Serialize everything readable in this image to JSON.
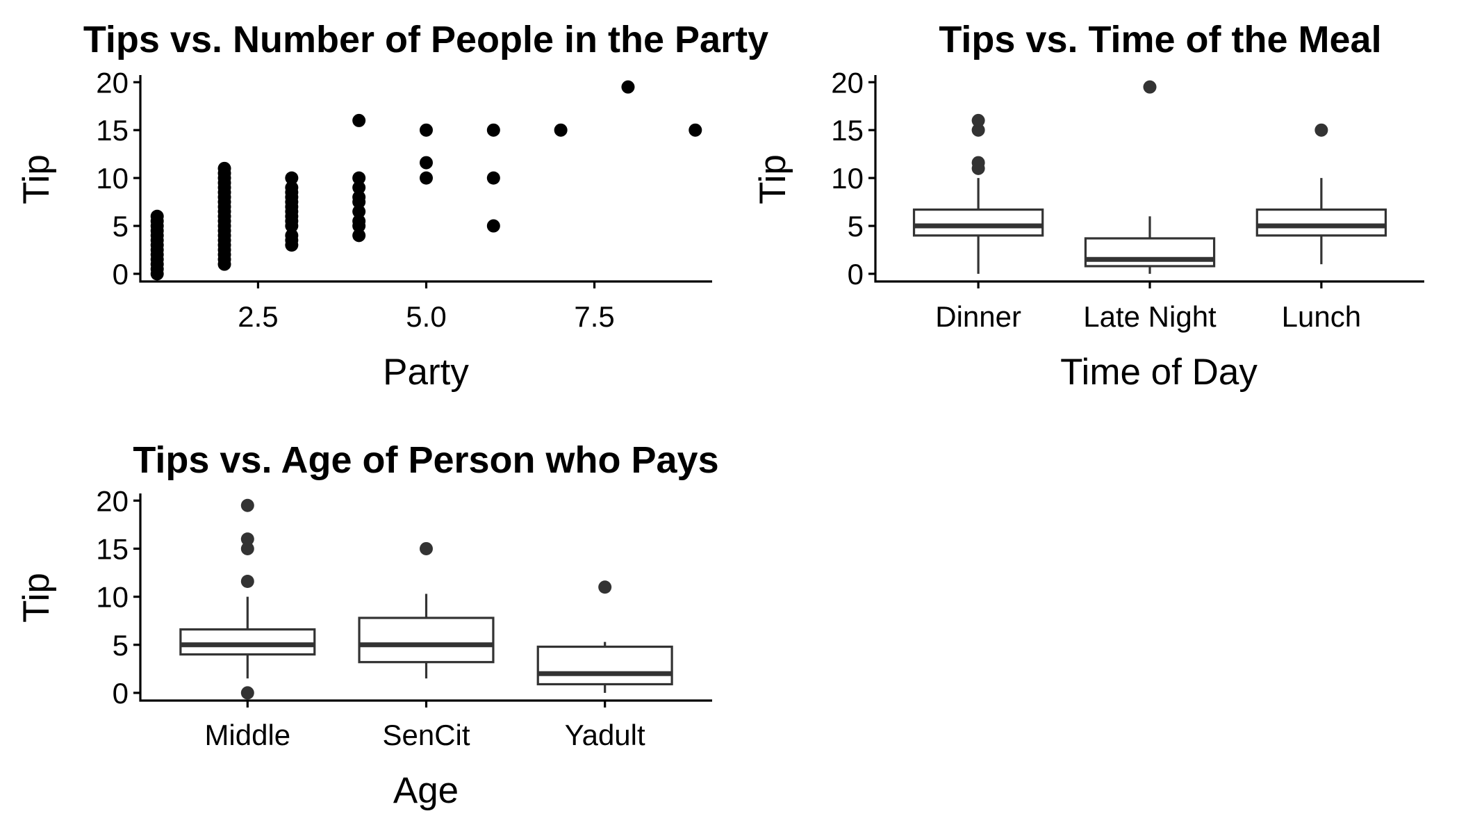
{
  "chart_data": [
    {
      "type": "scatter",
      "title": "Tips vs. Number of People in the Party",
      "xlabel": "Party",
      "ylabel": "Tip",
      "xlim": [
        0.75,
        9.25
      ],
      "ylim": [
        -0.8,
        20.6
      ],
      "x_ticks": [
        2.5,
        5.0,
        7.5
      ],
      "x_tick_labels": [
        "2.5",
        "5.0",
        "7.5"
      ],
      "y_ticks": [
        0,
        5,
        10,
        15,
        20
      ],
      "y_tick_labels": [
        "0",
        "5",
        "10",
        "15",
        "20"
      ],
      "grid": false,
      "points": [
        [
          1,
          0
        ],
        [
          1,
          0.5
        ],
        [
          1,
          1
        ],
        [
          1,
          1.5
        ],
        [
          1,
          2
        ],
        [
          1,
          2.5
        ],
        [
          1,
          3
        ],
        [
          1,
          3.5
        ],
        [
          1,
          4
        ],
        [
          1,
          4.5
        ],
        [
          1,
          5
        ],
        [
          1,
          5.5
        ],
        [
          1,
          6
        ],
        [
          2,
          1
        ],
        [
          2,
          1.5
        ],
        [
          2,
          2
        ],
        [
          2,
          2.5
        ],
        [
          2,
          3
        ],
        [
          2,
          3.5
        ],
        [
          2,
          4
        ],
        [
          2,
          4.5
        ],
        [
          2,
          5
        ],
        [
          2,
          5.5
        ],
        [
          2,
          6
        ],
        [
          2,
          6.5
        ],
        [
          2,
          7
        ],
        [
          2,
          7.5
        ],
        [
          2,
          8
        ],
        [
          2,
          8.5
        ],
        [
          2,
          9
        ],
        [
          2,
          9.5
        ],
        [
          2,
          10
        ],
        [
          2,
          10.5
        ],
        [
          2,
          11
        ],
        [
          3,
          3
        ],
        [
          3,
          3.5
        ],
        [
          3,
          4
        ],
        [
          3,
          5
        ],
        [
          3,
          5.5
        ],
        [
          3,
          6
        ],
        [
          3,
          6.5
        ],
        [
          3,
          7
        ],
        [
          3,
          7.5
        ],
        [
          3,
          8
        ],
        [
          3,
          8.5
        ],
        [
          3,
          9
        ],
        [
          3,
          10
        ],
        [
          4,
          4
        ],
        [
          4,
          5
        ],
        [
          4,
          5.5
        ],
        [
          4,
          6.5
        ],
        [
          4,
          7.5
        ],
        [
          4,
          8
        ],
        [
          4,
          9
        ],
        [
          4,
          10
        ],
        [
          4,
          16
        ],
        [
          5,
          10
        ],
        [
          5,
          11.6
        ],
        [
          5,
          15
        ],
        [
          6,
          5
        ],
        [
          6,
          10
        ],
        [
          6,
          15
        ],
        [
          7,
          15
        ],
        [
          8,
          19.5
        ],
        [
          9,
          15
        ]
      ]
    },
    {
      "type": "box",
      "title": "Tips vs. Time of the Meal",
      "xlabel": "Time of Day",
      "ylabel": "Tip",
      "ylim": [
        -0.8,
        20.6
      ],
      "y_ticks": [
        0,
        5,
        10,
        15,
        20
      ],
      "y_tick_labels": [
        "0",
        "5",
        "10",
        "15",
        "20"
      ],
      "grid": false,
      "categories": [
        "Dinner",
        "Late Night",
        "Lunch"
      ],
      "boxes": [
        {
          "category": "Dinner",
          "whisker_low": 0,
          "q1": 4,
          "median": 5,
          "q3": 6.7,
          "whisker_high": 10,
          "outliers": [
            11,
            11.6,
            15,
            16
          ]
        },
        {
          "category": "Late Night",
          "whisker_low": 0,
          "q1": 0.8,
          "median": 1.5,
          "q3": 3.7,
          "whisker_high": 6,
          "outliers": [
            19.5
          ]
        },
        {
          "category": "Lunch",
          "whisker_low": 1,
          "q1": 4,
          "median": 5,
          "q3": 6.7,
          "whisker_high": 10,
          "outliers": [
            15
          ]
        }
      ]
    },
    {
      "type": "box",
      "title": "Tips vs. Age of Person who Pays",
      "xlabel": "Age",
      "ylabel": "Tip",
      "ylim": [
        -0.8,
        20.6
      ],
      "y_ticks": [
        0,
        5,
        10,
        15,
        20
      ],
      "y_tick_labels": [
        "0",
        "5",
        "10",
        "15",
        "20"
      ],
      "grid": false,
      "categories": [
        "Middle",
        "SenCit",
        "Yadult"
      ],
      "boxes": [
        {
          "category": "Middle",
          "whisker_low": 1.5,
          "q1": 4,
          "median": 5,
          "q3": 6.6,
          "whisker_high": 10,
          "outliers": [
            0,
            11.6,
            15,
            16,
            19.5
          ]
        },
        {
          "category": "SenCit",
          "whisker_low": 1.5,
          "q1": 3.2,
          "median": 5,
          "q3": 7.8,
          "whisker_high": 10.3,
          "outliers": [
            15
          ]
        },
        {
          "category": "Yadult",
          "whisker_low": 0,
          "q1": 0.9,
          "median": 2,
          "q3": 4.8,
          "whisker_high": 5.3,
          "outliers": [
            11
          ]
        }
      ]
    }
  ]
}
